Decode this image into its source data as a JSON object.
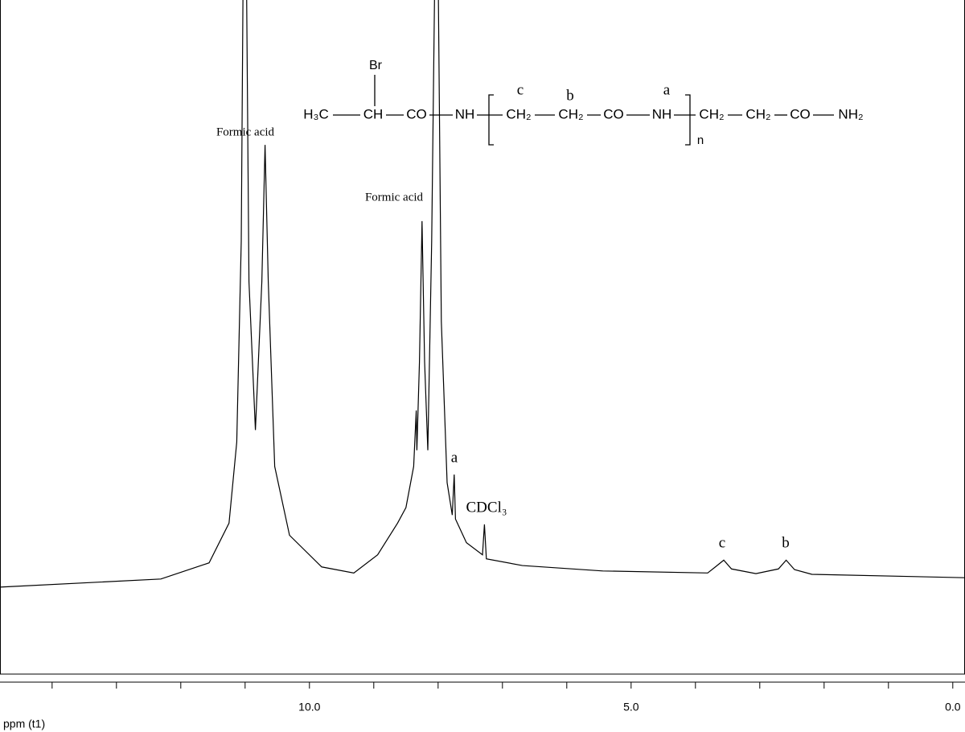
{
  "chart_data": {
    "type": "line",
    "x_label": "ppm (t1)",
    "xlim": [
      14.81,
      -0.19
    ],
    "ylim": [
      0,
      100
    ],
    "xticks": [
      {
        "value": 10,
        "label": "10.0"
      },
      {
        "value": 5,
        "label": "5.0"
      },
      {
        "value": 0,
        "label": "0.0"
      }
    ],
    "xminorticks": [
      14,
      13,
      12,
      11,
      9,
      8,
      7,
      6,
      4,
      3,
      2,
      1
    ],
    "series": [
      {
        "color": "#000000",
        "x": [
          14.81,
          12.31,
          11.56,
          11.25,
          11.13,
          11.06,
          11.03,
          10.98,
          10.94,
          10.84,
          10.74,
          10.69,
          10.64,
          10.54,
          10.31,
          9.81,
          9.31,
          8.94,
          8.63,
          8.5,
          8.38,
          8.34,
          8.33,
          8.29,
          8.25,
          8.21,
          8.16,
          8.1,
          8.05,
          8.0,
          7.95,
          7.86,
          7.78,
          7.75,
          7.73,
          7.56,
          7.31,
          7.28,
          7.25,
          6.69,
          5.44,
          3.81,
          3.69,
          3.56,
          3.44,
          3.06,
          2.71,
          2.59,
          2.46,
          2.19,
          -0.19
        ],
        "values": [
          12.9,
          14.1,
          16.5,
          22.4,
          34.4,
          64.2,
          105,
          105,
          58.2,
          36.2,
          58.2,
          78.5,
          58.2,
          30.8,
          20.6,
          15.9,
          15.0,
          17.7,
          22.4,
          24.7,
          30.8,
          39.1,
          33.2,
          46.3,
          67.2,
          46.3,
          33.2,
          64.2,
          105,
          105,
          52.3,
          28.4,
          23.6,
          29.6,
          23.0,
          19.5,
          17.7,
          22.2,
          17.1,
          16.1,
          15.3,
          15.0,
          15.9,
          16.9,
          15.6,
          14.9,
          15.6,
          16.9,
          15.5,
          14.8,
          14.3
        ]
      }
    ],
    "annotations": [
      "Formic acid",
      "Formic acid",
      "a",
      "CDCl₃",
      "c",
      "b"
    ]
  },
  "structure": {
    "groups": [
      "H₃C",
      "CH",
      "CO",
      "NH",
      "CH₂",
      "CH₂",
      "CO",
      "NH",
      "CH₂",
      "CH₂",
      "CO",
      "NH₂"
    ],
    "substituent": "Br",
    "labels": [
      "c",
      "b",
      "a"
    ],
    "repeat": "n"
  }
}
